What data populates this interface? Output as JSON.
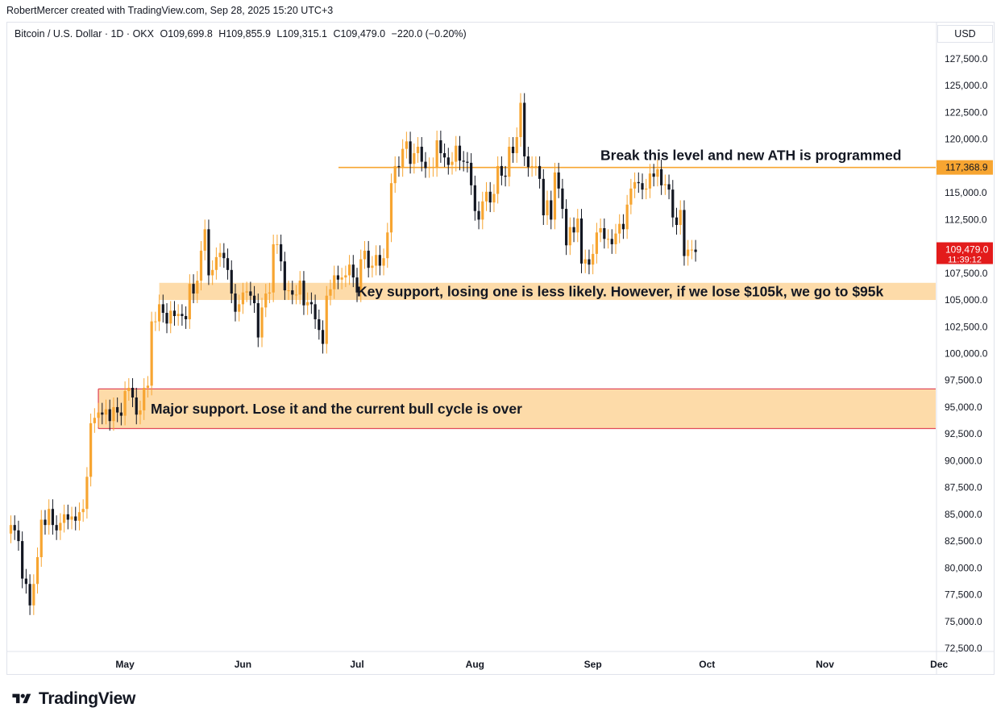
{
  "header": {
    "credit": "RobertMercer created with TradingView.com, Sep 28, 2025 15:20 UTC+3",
    "symbol": "Bitcoin / U.S. Dollar · 1D · OKX",
    "open_label": "O",
    "open": "109,699.8",
    "high_label": "H",
    "high": "109,855.9",
    "low_label": "L",
    "low": "109,315.1",
    "close_label": "C",
    "close": "109,479.0",
    "change": "−220.0 (−0.20%)",
    "currency": "USD"
  },
  "footer": {
    "brand": "TradingView"
  },
  "colors": {
    "up": "#f7a531",
    "down": "#131722",
    "zone": "#fdd9a4",
    "zone_border": "#e04b5a",
    "level_line": "#f7a531",
    "last_price_bg": "#e31b1b",
    "level_tag_bg": "#f7a531"
  },
  "chart_data": {
    "type": "candlestick",
    "x_ticks": [
      "May",
      "Jun",
      "Jul",
      "Aug",
      "Sep",
      "Oct",
      "Nov",
      "Dec"
    ],
    "y_ticks": [
      "72,500.0",
      "75,000.0",
      "77,500.0",
      "80,000.0",
      "82,500.0",
      "85,000.0",
      "87,500.0",
      "90,000.0",
      "92,500.0",
      "95,000.0",
      "97,500.0",
      "100,000.0",
      "102,500.0",
      "105,000.0",
      "107,500.0",
      "110,000.0",
      "112,500.0",
      "115,000.0",
      "117,500.0",
      "120,000.0",
      "122,500.0",
      "125,000.0",
      "127,500.0"
    ],
    "ylim": [
      72000,
      129000
    ],
    "last_price": {
      "value": 109479,
      "label": "109,479.0",
      "countdown": "11:39:12"
    },
    "levels": [
      {
        "value": 117368.9,
        "label": "117,368.9",
        "annotation": "Break this level and new ATH is programmed"
      }
    ],
    "zones": [
      {
        "low": 105000,
        "high": 106600,
        "from": "2025-05-10",
        "annotation": "Key support, losing one is less likely. However, if we lose $105k, we go to $95k"
      },
      {
        "low": 93000,
        "high": 96700,
        "from": "2025-04-24",
        "annotation": "Major support. Lose it and the current bull cycle is over"
      }
    ],
    "series_closes": [
      {
        "date": "2025-04-01",
        "c": 84000
      },
      {
        "date": "2025-04-02",
        "c": 83500
      },
      {
        "date": "2025-04-03",
        "c": 82500
      },
      {
        "date": "2025-04-04",
        "c": 79000
      },
      {
        "date": "2025-04-05",
        "c": 78500
      },
      {
        "date": "2025-04-06",
        "c": 76500
      },
      {
        "date": "2025-04-07",
        "c": 78500
      },
      {
        "date": "2025-04-08",
        "c": 81000
      },
      {
        "date": "2025-04-09",
        "c": 84500
      },
      {
        "date": "2025-04-10",
        "c": 84000
      },
      {
        "date": "2025-04-11",
        "c": 85500
      },
      {
        "date": "2025-04-12",
        "c": 84000
      },
      {
        "date": "2025-04-13",
        "c": 83500
      },
      {
        "date": "2025-04-14",
        "c": 84200
      },
      {
        "date": "2025-04-15",
        "c": 85000
      },
      {
        "date": "2025-04-16",
        "c": 84500
      },
      {
        "date": "2025-04-17",
        "c": 84800
      },
      {
        "date": "2025-04-18",
        "c": 84400
      },
      {
        "date": "2025-04-19",
        "c": 85200
      },
      {
        "date": "2025-04-20",
        "c": 85500
      },
      {
        "date": "2025-04-21",
        "c": 88500
      },
      {
        "date": "2025-04-22",
        "c": 93500
      },
      {
        "date": "2025-04-23",
        "c": 94000
      },
      {
        "date": "2025-04-24",
        "c": 94500
      },
      {
        "date": "2025-04-25",
        "c": 94300
      },
      {
        "date": "2025-04-26",
        "c": 94800
      },
      {
        "date": "2025-04-27",
        "c": 93700
      },
      {
        "date": "2025-04-28",
        "c": 95000
      },
      {
        "date": "2025-04-29",
        "c": 94500
      },
      {
        "date": "2025-04-30",
        "c": 94200
      },
      {
        "date": "2025-05-01",
        "c": 96500
      },
      {
        "date": "2025-05-02",
        "c": 96800
      },
      {
        "date": "2025-05-03",
        "c": 95900
      },
      {
        "date": "2025-05-04",
        "c": 94300
      },
      {
        "date": "2025-05-05",
        "c": 94700
      },
      {
        "date": "2025-05-06",
        "c": 96800
      },
      {
        "date": "2025-05-07",
        "c": 97000
      },
      {
        "date": "2025-05-08",
        "c": 103000
      },
      {
        "date": "2025-05-09",
        "c": 103000
      },
      {
        "date": "2025-05-10",
        "c": 104600
      },
      {
        "date": "2025-05-11",
        "c": 103800
      },
      {
        "date": "2025-05-12",
        "c": 102800
      },
      {
        "date": "2025-05-13",
        "c": 104000
      },
      {
        "date": "2025-05-14",
        "c": 103500
      },
      {
        "date": "2025-05-15",
        "c": 103700
      },
      {
        "date": "2025-05-16",
        "c": 103500
      },
      {
        "date": "2025-05-17",
        "c": 103200
      },
      {
        "date": "2025-05-18",
        "c": 106500
      },
      {
        "date": "2025-05-19",
        "c": 105600
      },
      {
        "date": "2025-05-20",
        "c": 106800
      },
      {
        "date": "2025-05-21",
        "c": 109600
      },
      {
        "date": "2025-05-22",
        "c": 111600
      },
      {
        "date": "2025-05-23",
        "c": 107300
      },
      {
        "date": "2025-05-24",
        "c": 107800
      },
      {
        "date": "2025-05-25",
        "c": 109000
      },
      {
        "date": "2025-05-26",
        "c": 109400
      },
      {
        "date": "2025-05-27",
        "c": 108900
      },
      {
        "date": "2025-05-28",
        "c": 107800
      },
      {
        "date": "2025-05-29",
        "c": 105600
      },
      {
        "date": "2025-05-30",
        "c": 103900
      },
      {
        "date": "2025-05-31",
        "c": 104600
      },
      {
        "date": "2025-06-01",
        "c": 105700
      },
      {
        "date": "2025-06-02",
        "c": 105800
      },
      {
        "date": "2025-06-03",
        "c": 105400
      },
      {
        "date": "2025-06-04",
        "c": 104700
      },
      {
        "date": "2025-06-05",
        "c": 101500
      },
      {
        "date": "2025-06-06",
        "c": 104300
      },
      {
        "date": "2025-06-07",
        "c": 105600
      },
      {
        "date": "2025-06-08",
        "c": 105700
      },
      {
        "date": "2025-06-09",
        "c": 110200
      },
      {
        "date": "2025-06-10",
        "c": 110200
      },
      {
        "date": "2025-06-11",
        "c": 108600
      },
      {
        "date": "2025-06-12",
        "c": 105900
      },
      {
        "date": "2025-06-13",
        "c": 105900
      },
      {
        "date": "2025-06-14",
        "c": 105500
      },
      {
        "date": "2025-06-15",
        "c": 105500
      },
      {
        "date": "2025-06-16",
        "c": 106800
      },
      {
        "date": "2025-06-17",
        "c": 104500
      },
      {
        "date": "2025-06-18",
        "c": 104800
      },
      {
        "date": "2025-06-19",
        "c": 104600
      },
      {
        "date": "2025-06-20",
        "c": 103200
      },
      {
        "date": "2025-06-21",
        "c": 102200
      },
      {
        "date": "2025-06-22",
        "c": 100900
      },
      {
        "date": "2025-06-23",
        "c": 105400
      },
      {
        "date": "2025-06-24",
        "c": 106000
      },
      {
        "date": "2025-06-25",
        "c": 107300
      },
      {
        "date": "2025-06-26",
        "c": 106900
      },
      {
        "date": "2025-06-27",
        "c": 107100
      },
      {
        "date": "2025-06-28",
        "c": 107300
      },
      {
        "date": "2025-06-29",
        "c": 108300
      },
      {
        "date": "2025-06-30",
        "c": 107100
      },
      {
        "date": "2025-07-01",
        "c": 105700
      },
      {
        "date": "2025-07-02",
        "c": 108800
      },
      {
        "date": "2025-07-03",
        "c": 109600
      },
      {
        "date": "2025-07-04",
        "c": 108000
      },
      {
        "date": "2025-07-05",
        "c": 108200
      },
      {
        "date": "2025-07-06",
        "c": 109200
      },
      {
        "date": "2025-07-07",
        "c": 108200
      },
      {
        "date": "2025-07-08",
        "c": 108900
      },
      {
        "date": "2025-07-09",
        "c": 111300
      },
      {
        "date": "2025-07-10",
        "c": 115900
      },
      {
        "date": "2025-07-11",
        "c": 117500
      },
      {
        "date": "2025-07-12",
        "c": 117400
      },
      {
        "date": "2025-07-13",
        "c": 119100
      },
      {
        "date": "2025-07-14",
        "c": 119800
      },
      {
        "date": "2025-07-15",
        "c": 117700
      },
      {
        "date": "2025-07-16",
        "c": 118700
      },
      {
        "date": "2025-07-17",
        "c": 119300
      },
      {
        "date": "2025-07-18",
        "c": 117900
      },
      {
        "date": "2025-07-19",
        "c": 117300
      },
      {
        "date": "2025-07-20",
        "c": 117400
      },
      {
        "date": "2025-07-21",
        "c": 117400
      },
      {
        "date": "2025-07-22",
        "c": 119900
      },
      {
        "date": "2025-07-23",
        "c": 118700
      },
      {
        "date": "2025-07-24",
        "c": 118300
      },
      {
        "date": "2025-07-25",
        "c": 117600
      },
      {
        "date": "2025-07-26",
        "c": 117900
      },
      {
        "date": "2025-07-27",
        "c": 119400
      },
      {
        "date": "2025-07-28",
        "c": 118000
      },
      {
        "date": "2025-07-29",
        "c": 117900
      },
      {
        "date": "2025-07-30",
        "c": 117800
      },
      {
        "date": "2025-07-31",
        "c": 115700
      },
      {
        "date": "2025-08-01",
        "c": 113300
      },
      {
        "date": "2025-08-02",
        "c": 112500
      },
      {
        "date": "2025-08-03",
        "c": 114200
      },
      {
        "date": "2025-08-04",
        "c": 115100
      },
      {
        "date": "2025-08-05",
        "c": 114100
      },
      {
        "date": "2025-08-06",
        "c": 114900
      },
      {
        "date": "2025-08-07",
        "c": 117500
      },
      {
        "date": "2025-08-08",
        "c": 116600
      },
      {
        "date": "2025-08-09",
        "c": 116500
      },
      {
        "date": "2025-08-10",
        "c": 119300
      },
      {
        "date": "2025-08-11",
        "c": 118700
      },
      {
        "date": "2025-08-12",
        "c": 120200
      },
      {
        "date": "2025-08-13",
        "c": 123400
      },
      {
        "date": "2025-08-14",
        "c": 118400
      },
      {
        "date": "2025-08-15",
        "c": 117400
      },
      {
        "date": "2025-08-16",
        "c": 117500
      },
      {
        "date": "2025-08-17",
        "c": 117500
      },
      {
        "date": "2025-08-18",
        "c": 116300
      },
      {
        "date": "2025-08-19",
        "c": 112900
      },
      {
        "date": "2025-08-20",
        "c": 114300
      },
      {
        "date": "2025-08-21",
        "c": 112500
      },
      {
        "date": "2025-08-22",
        "c": 116900
      },
      {
        "date": "2025-08-23",
        "c": 115400
      },
      {
        "date": "2025-08-24",
        "c": 113500
      },
      {
        "date": "2025-08-25",
        "c": 110100
      },
      {
        "date": "2025-08-26",
        "c": 111800
      },
      {
        "date": "2025-08-27",
        "c": 111300
      },
      {
        "date": "2025-08-28",
        "c": 112600
      },
      {
        "date": "2025-08-29",
        "c": 108400
      },
      {
        "date": "2025-08-30",
        "c": 108800
      },
      {
        "date": "2025-08-31",
        "c": 108300
      },
      {
        "date": "2025-09-01",
        "c": 109300
      },
      {
        "date": "2025-09-02",
        "c": 111300
      },
      {
        "date": "2025-09-03",
        "c": 111700
      },
      {
        "date": "2025-09-04",
        "c": 110700
      },
      {
        "date": "2025-09-05",
        "c": 110700
      },
      {
        "date": "2025-09-06",
        "c": 110200
      },
      {
        "date": "2025-09-07",
        "c": 111200
      },
      {
        "date": "2025-09-08",
        "c": 112100
      },
      {
        "date": "2025-09-09",
        "c": 111600
      },
      {
        "date": "2025-09-10",
        "c": 113900
      },
      {
        "date": "2025-09-11",
        "c": 115400
      },
      {
        "date": "2025-09-12",
        "c": 116000
      },
      {
        "date": "2025-09-13",
        "c": 115900
      },
      {
        "date": "2025-09-14",
        "c": 115300
      },
      {
        "date": "2025-09-15",
        "c": 115400
      },
      {
        "date": "2025-09-16",
        "c": 116800
      },
      {
        "date": "2025-09-17",
        "c": 116500
      },
      {
        "date": "2025-09-18",
        "c": 117200
      },
      {
        "date": "2025-09-19",
        "c": 115700
      },
      {
        "date": "2025-09-20",
        "c": 115800
      },
      {
        "date": "2025-09-21",
        "c": 115300
      },
      {
        "date": "2025-09-22",
        "c": 112700
      },
      {
        "date": "2025-09-23",
        "c": 112000
      },
      {
        "date": "2025-09-24",
        "c": 113400
      },
      {
        "date": "2025-09-25",
        "c": 109100
      },
      {
        "date": "2025-09-26",
        "c": 109700
      },
      {
        "date": "2025-09-27",
        "c": 109700
      },
      {
        "date": "2025-09-28",
        "c": 109479
      }
    ]
  }
}
